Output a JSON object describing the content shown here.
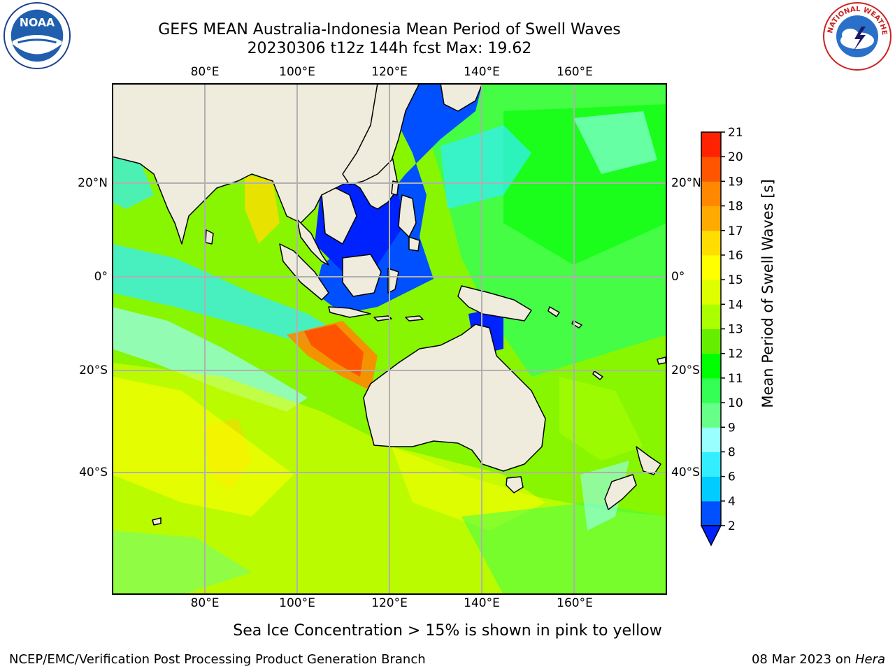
{
  "title": {
    "line1": "GEFS MEAN Australia-Indonesia Mean Period of Swell Waves",
    "line2": "20230306 t12z 144h fcst   Max: 19.62"
  },
  "axes": {
    "lon_labels": [
      "80°E",
      "100°E",
      "120°E",
      "140°E",
      "160°E"
    ],
    "lat_labels": [
      "20°N",
      "0°",
      "20°S",
      "40°S"
    ]
  },
  "colorbar": {
    "label": "Mean Period of Swell Waves [s]",
    "ticks": [
      "2",
      "4",
      "6",
      "8",
      "9",
      "10",
      "11",
      "12",
      "13",
      "14",
      "15",
      "16",
      "17",
      "18",
      "19",
      "20",
      "21"
    ],
    "colors": [
      "#0050ff",
      "#00ccff",
      "#33eeff",
      "#99ffff",
      "#66ff88",
      "#33ff55",
      "#00ff00",
      "#66ee00",
      "#aaff00",
      "#ddff00",
      "#ffff00",
      "#ffdd00",
      "#ffaa00",
      "#ff8800",
      "#ff5500",
      "#ff2200",
      "#ff0000"
    ],
    "under_color": "#0022ff"
  },
  "map": {
    "land_color": "#efecdd",
    "grid_color": "#b0b0b0"
  },
  "caption": "Sea Ice Concentration > 15% is shown in pink to yellow",
  "footer": {
    "left": "NCEP/EMC/Verification Post Processing Product Generation Branch",
    "date": "08 Mar 2023 on ",
    "machine": "Hera"
  },
  "logos": {
    "noaa": "NOAA",
    "nws": "NATIONAL WEATHER SERVICE"
  }
}
